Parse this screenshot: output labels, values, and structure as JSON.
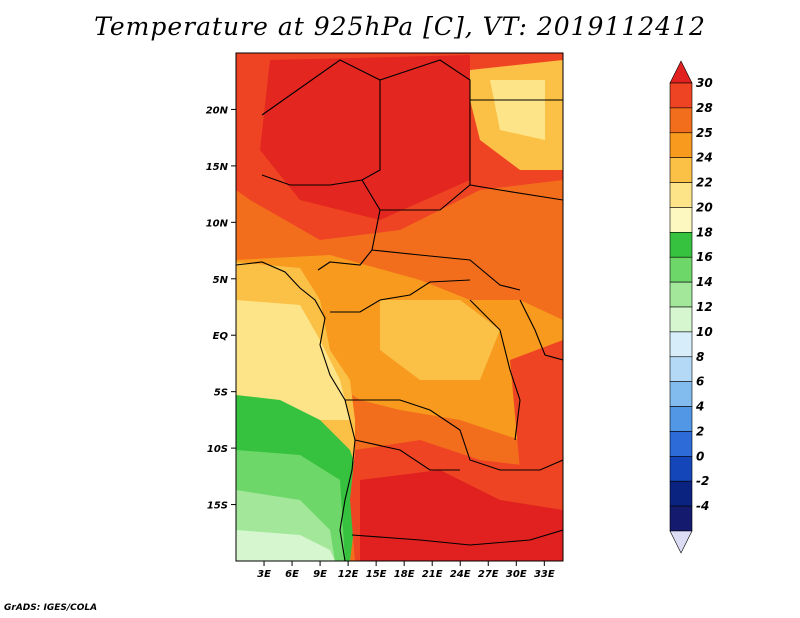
{
  "title": "Temperature at 925hPa [C], VT: 2019112412",
  "footer": "GrADS: IGES/COLA",
  "map": {
    "variable": "Temperature",
    "level": "925hPa",
    "units": "C",
    "valid_time": "2019112412",
    "lon_range": [
      0,
      35
    ],
    "lat_range": [
      -20,
      25
    ],
    "lon_ticks": [
      "3E",
      "6E",
      "9E",
      "12E",
      "15E",
      "18E",
      "21E",
      "24E",
      "27E",
      "30E",
      "33E"
    ],
    "lat_ticks": [
      "20N",
      "15N",
      "10N",
      "5N",
      "EQ",
      "5S",
      "10S",
      "15S"
    ]
  },
  "colorbar": {
    "labels": [
      "30",
      "28",
      "25",
      "24",
      "22",
      "20",
      "18",
      "16",
      "14",
      "12",
      "10",
      "8",
      "6",
      "4",
      "2",
      "0",
      "-2",
      "-4"
    ],
    "colors": [
      "#e0211f",
      "#ef4423",
      "#f36e1c",
      "#f79a1e",
      "#fbc046",
      "#fde488",
      "#fdf8c0",
      "#36c23e",
      "#6ed769",
      "#a2e79a",
      "#d6f6d0",
      "#d7eefa",
      "#b3d9f6",
      "#82bcee",
      "#5197e6",
      "#2c6bd8",
      "#1446b9",
      "#0b2380",
      "#141a6e"
    ],
    "top_color": "#e0211f",
    "bottom_color": "#dcdcf5"
  }
}
